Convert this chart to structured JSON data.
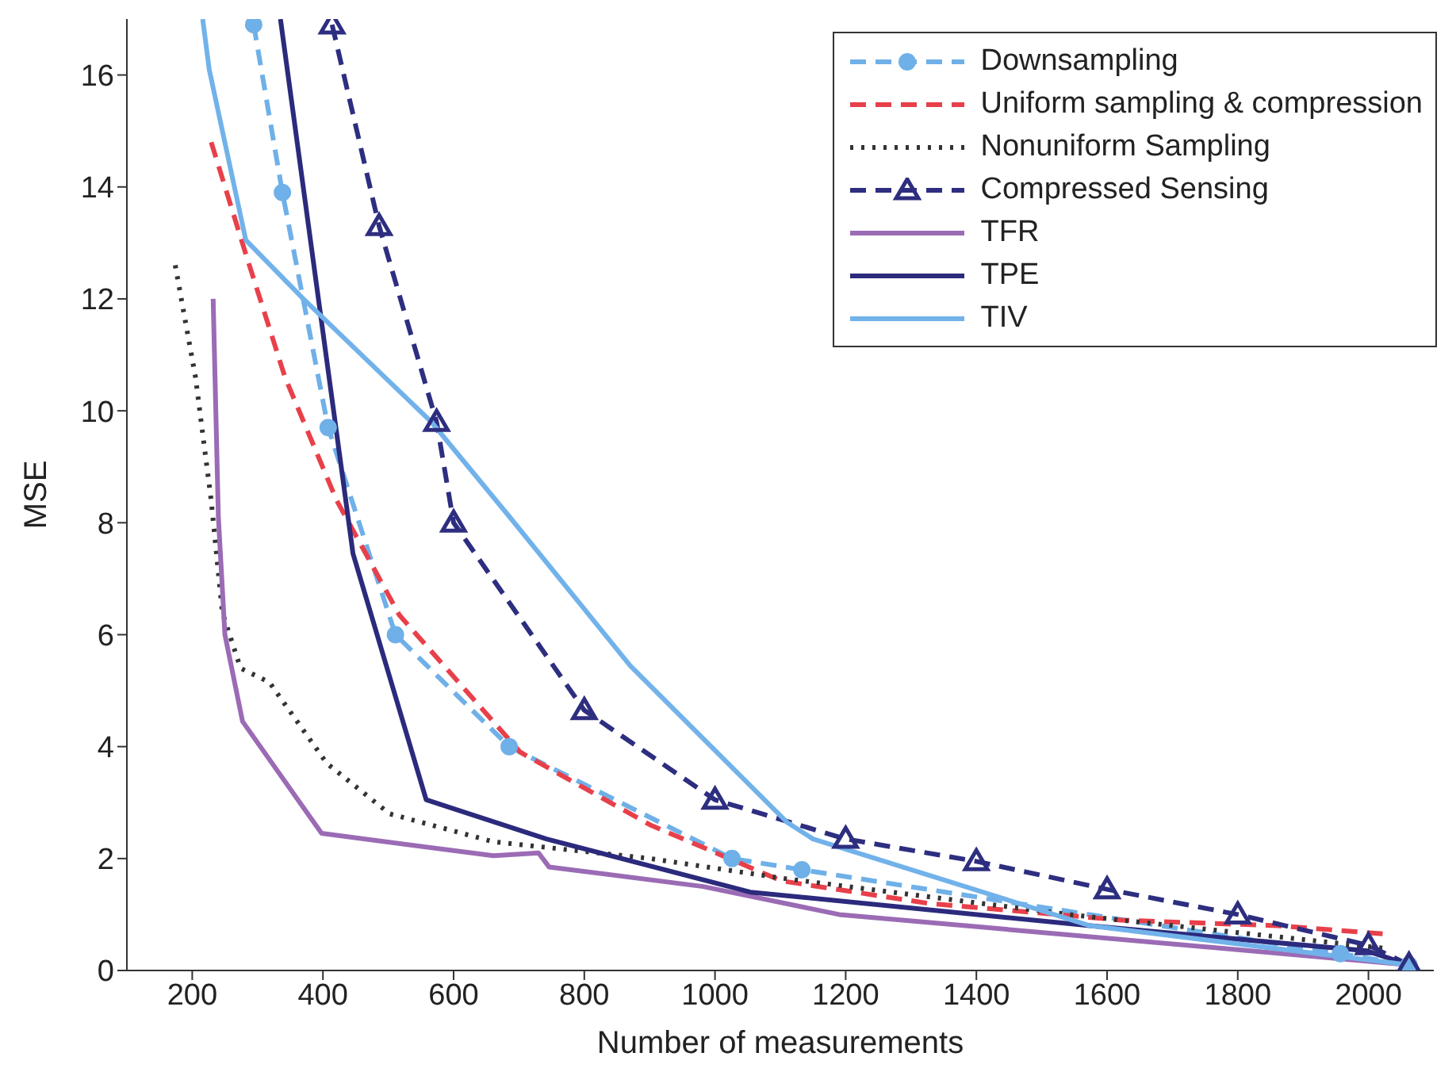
{
  "chart_data": {
    "type": "line",
    "xlabel": "Number of measurements",
    "ylabel": "MSE",
    "xlim": [
      100,
      2100
    ],
    "ylim": [
      0,
      17
    ],
    "xticks": [
      200,
      400,
      600,
      800,
      1000,
      1200,
      1400,
      1600,
      1800,
      2000
    ],
    "yticks": [
      0,
      2,
      4,
      6,
      8,
      10,
      12,
      14,
      16
    ],
    "grid": false,
    "legend": "top right",
    "series": [
      {
        "name": "Downsampling",
        "color": "#6fb0e8",
        "line_style": "dashed",
        "marker": "circle",
        "x": [
          294,
          338,
          408,
          511,
          685,
          1026,
          1133,
          1957,
          2062
        ],
        "values": [
          16.9,
          13.9,
          9.7,
          6.0,
          4.0,
          2.0,
          1.8,
          0.3,
          0.1
        ]
      },
      {
        "name": "Uniform sampling & compression",
        "color": "#e8404a",
        "line_style": "dashed",
        "marker": "none",
        "x": [
          229,
          282,
          342,
          421,
          517,
          702,
          901,
          1102,
          1326,
          1621,
          1861,
          2029
        ],
        "values": [
          14.8,
          12.8,
          10.6,
          8.4,
          6.35,
          3.9,
          2.6,
          1.6,
          1.2,
          0.9,
          0.8,
          0.65
        ]
      },
      {
        "name": "Nonuniform Sampling",
        "color": "#333333",
        "line_style": "dotted",
        "marker": "none",
        "x": [
          174,
          205,
          229,
          246,
          274,
          318,
          406,
          502,
          661,
          901,
          1102,
          1542,
          2022
        ],
        "values": [
          12.6,
          10.6,
          8.4,
          6.4,
          5.4,
          5.15,
          3.7,
          2.8,
          2.3,
          2.0,
          1.65,
          1.0,
          0.4
        ]
      },
      {
        "name": "Compressed Sensing",
        "color": "#2e2e80",
        "line_style": "dashed",
        "marker": "triangle",
        "x": [
          414,
          486,
          574,
          600,
          800,
          1000,
          1200,
          1400,
          1600,
          1800,
          2000,
          2062
        ],
        "values": [
          16.9,
          13.3,
          9.8,
          8.0,
          4.65,
          3.05,
          2.35,
          1.95,
          1.45,
          1.0,
          0.45,
          0.1
        ]
      },
      {
        "name": "TFR",
        "color": "#9b6bb5",
        "line_style": "solid",
        "marker": "none",
        "x": [
          232,
          240,
          250,
          277,
          398,
          661,
          730,
          746,
          982,
          1190,
          2062
        ],
        "values": [
          12.0,
          8.1,
          6.0,
          4.45,
          2.45,
          2.05,
          2.1,
          1.85,
          1.5,
          1.0,
          0.1
        ]
      },
      {
        "name": "TPE",
        "color": "#2b2a7c",
        "line_style": "solid",
        "marker": "none",
        "x": [
          335,
          446,
          558,
          742,
          1054,
          1574,
          1998,
          2062
        ],
        "values": [
          17.0,
          7.45,
          3.05,
          2.35,
          1.4,
          0.8,
          0.35,
          0.1
        ]
      },
      {
        "name": "TIV",
        "color": "#72b2ea",
        "line_style": "solid",
        "marker": "none",
        "x": [
          216,
          226,
          282,
          370,
          566,
          686,
          870,
          1110,
          1150,
          1574,
          2062
        ],
        "values": [
          17.0,
          16.1,
          13.05,
          12.0,
          9.8,
          8.1,
          5.45,
          2.65,
          2.35,
          0.8,
          0.1
        ]
      }
    ]
  }
}
